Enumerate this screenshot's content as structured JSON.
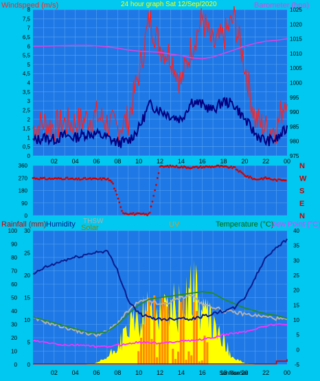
{
  "colors": {
    "background": "#00c8f0",
    "plot_bg": "#1e78e6",
    "grid": "#5aa6f0",
    "wind_gust": "#ff2020",
    "wind_avg": "#000080",
    "barometer": "#e040e0",
    "wind_dir": "#d00000",
    "humidity": "#0a1a8c",
    "temperature": "#228b22",
    "dew_point": "#ff30ff",
    "thsw": "#b0b0b0",
    "solar": "#ffff00",
    "uv": "#ff8c00",
    "rainfall": "#cc0000",
    "title_text": "#ffff00",
    "axis_text": "#000000"
  },
  "panel1": {
    "title": "24 hour graph Sat 12/Sep/2020",
    "left_label": "Windspeed (m/s)",
    "right_label": "Barometer (hpa)",
    "left_ticks": [
      "0",
      "0,5",
      "1",
      "1,5",
      "2",
      "2,5",
      "3",
      "3,5",
      "4",
      "4,5",
      "5",
      "5,5",
      "6",
      "6,5",
      "7",
      "7,5",
      "8"
    ],
    "right_ticks": [
      "975",
      "980",
      "985",
      "990",
      "995",
      "1000",
      "1005",
      "1010",
      "1015",
      "1020",
      "1025"
    ],
    "x_ticks": [
      "02",
      "04",
      "06",
      "08",
      "10",
      "12",
      "14",
      "16",
      "18",
      "20",
      "22",
      "00"
    ]
  },
  "panel2": {
    "left_ticks": [
      "0",
      "90",
      "180",
      "270",
      "360"
    ],
    "compass": [
      "N",
      "W",
      "S",
      "E",
      "N"
    ]
  },
  "panel3": {
    "labels": {
      "rainfall": "Rainfall (mm)",
      "humidity": "Humidity",
      "thsw": "THSW",
      "solar": "Solar",
      "uv": "UV",
      "temperature": "Temperature (°C)",
      "dew_point": "Dew Point (°C)"
    },
    "left_ticks": [
      "0",
      "10",
      "20",
      "30",
      "40",
      "50",
      "60",
      "70",
      "80",
      "90",
      "100"
    ],
    "inner_ticks": [
      "0",
      "5",
      "10",
      "15",
      "20",
      "25",
      "30"
    ],
    "right_ticks": [
      "-5",
      "0",
      "5",
      "10",
      "15",
      "20",
      "25",
      "30",
      "35",
      "40"
    ],
    "x_ticks": [
      "02",
      "04",
      "06",
      "08",
      "10",
      "12",
      "14",
      "16",
      "18",
      "20",
      "22",
      "00"
    ],
    "sun_labels": [
      "SunRise",
      "SunSet"
    ]
  },
  "chart_data": [
    {
      "type": "line",
      "title": "24 hour graph Sat 12/Sep/2020",
      "ylabel": "Windspeed (m/s)",
      "y2label": "Barometer (hpa)",
      "ylim": [
        0,
        8
      ],
      "y2lim": [
        975,
        1025
      ],
      "x_unit": "hour",
      "x": [
        0,
        1,
        2,
        3,
        4,
        5,
        6,
        7,
        8,
        9,
        10,
        11,
        12,
        13,
        14,
        15,
        16,
        17,
        18,
        19,
        20,
        21,
        22,
        23,
        24
      ],
      "series": [
        {
          "name": "Windspeed gust",
          "axis": "left",
          "values": [
            1.5,
            1.8,
            1.6,
            1.8,
            1.8,
            2.0,
            2.2,
            1.8,
            1.5,
            2.0,
            4.5,
            7.5,
            6.0,
            5.5,
            4.0,
            6.0,
            7.5,
            6.0,
            6.5,
            7.5,
            5.0,
            2.0,
            1.5,
            1.5,
            3.5
          ]
        },
        {
          "name": "Windspeed avg",
          "axis": "left",
          "values": [
            0.8,
            1.0,
            0.9,
            1.1,
            1.0,
            1.2,
            1.2,
            1.0,
            0.7,
            0.8,
            1.5,
            2.8,
            2.5,
            2.2,
            2.0,
            3.0,
            2.8,
            2.5,
            3.0,
            2.8,
            2.0,
            1.2,
            0.8,
            0.9,
            1.5
          ]
        },
        {
          "name": "Barometer",
          "axis": "right",
          "values": [
            1012.5,
            1012.5,
            1012.6,
            1012.7,
            1012.8,
            1012.8,
            1012.6,
            1012.3,
            1011.8,
            1011.2,
            1010.8,
            1010.6,
            1010.4,
            1009.8,
            1009.3,
            1008.5,
            1008.2,
            1008.8,
            1010.0,
            1011.2,
            1012.5,
            1013.5,
            1014.2,
            1014.5,
            1015.0
          ]
        }
      ]
    },
    {
      "type": "scatter",
      "ylabel": "Wind direction",
      "ylim": [
        0,
        360
      ],
      "x_unit": "hour",
      "x": [
        0,
        1,
        2,
        3,
        4,
        5,
        6,
        7,
        7.5,
        8.3,
        8.5,
        9,
        10,
        11,
        12,
        13,
        14,
        15,
        16,
        17,
        17.5,
        18,
        19,
        20,
        21,
        22,
        23,
        24
      ],
      "values": [
        270,
        265,
        265,
        268,
        260,
        265,
        262,
        265,
        240,
        60,
        20,
        15,
        10,
        8,
        350,
        355,
        350,
        345,
        350,
        352,
        355,
        350,
        345,
        290,
        260,
        270,
        255,
        260
      ]
    },
    {
      "type": "line",
      "ylabel": "Rainfall (mm)",
      "y2label": "Temperature (°C)",
      "ylim": [
        0,
        100
      ],
      "inner_ylim": [
        0,
        30
      ],
      "y2lim": [
        -5,
        40
      ],
      "x_unit": "hour",
      "x": [
        0,
        1,
        2,
        3,
        4,
        5,
        6,
        7,
        8,
        9,
        10,
        11,
        12,
        13,
        14,
        15,
        16,
        17,
        18,
        19,
        20,
        21,
        22,
        23,
        24
      ],
      "series": [
        {
          "name": "Humidity",
          "axis": "left",
          "values": [
            67,
            72,
            75,
            78,
            80,
            82,
            84,
            85,
            70,
            48,
            38,
            35,
            34,
            34,
            35,
            34,
            36,
            38,
            40,
            42,
            50,
            65,
            80,
            88,
            93
          ]
        },
        {
          "name": "Temperature",
          "axis": "right",
          "values": [
            11.0,
            10.0,
            9.0,
            8.0,
            7.0,
            6.0,
            5.5,
            6.0,
            8.5,
            12.0,
            15.0,
            17.0,
            17.5,
            18.0,
            18.5,
            19.0,
            19.5,
            19.0,
            17.0,
            15.5,
            14.0,
            13.0,
            12.0,
            11.5,
            10.5
          ]
        },
        {
          "name": "Dew Point",
          "axis": "right",
          "values": [
            3.0,
            2.5,
            2.0,
            1.5,
            1.5,
            1.5,
            1.0,
            1.0,
            1.5,
            2.0,
            2.5,
            2.5,
            2.0,
            2.5,
            3.0,
            3.0,
            3.5,
            4.0,
            5.0,
            5.5,
            6.0,
            7.0,
            8.0,
            8.5,
            8.5
          ]
        },
        {
          "name": "THSW",
          "axis": "right",
          "values": [
            10.5,
            9.5,
            8.5,
            7.5,
            6.5,
            5.5,
            5.0,
            6.0,
            9.0,
            13.0,
            16.0,
            16.5,
            15.0,
            16.0,
            17.5,
            18.5,
            15.0,
            14.5,
            13.0,
            12.5,
            12.0,
            11.5,
            11.0,
            10.5,
            10.0
          ]
        },
        {
          "name": "Solar",
          "axis": "inner",
          "values": [
            0,
            0,
            0,
            0,
            0,
            0,
            0.3,
            1.5,
            4.0,
            8.0,
            10.0,
            12.0,
            12.5,
            13.0,
            12.5,
            18.0,
            12.0,
            9.0,
            5.0,
            1.5,
            0.3,
            0,
            0,
            0,
            0
          ]
        },
        {
          "name": "UV",
          "axis": "inner",
          "values": [
            0,
            0,
            0,
            0,
            0,
            0,
            0,
            0,
            0,
            0,
            3.0,
            15.0,
            16.0,
            12.0,
            14.0,
            16.0,
            8.0,
            2.0,
            0,
            0,
            0,
            0,
            0,
            0,
            0
          ]
        },
        {
          "name": "Rainfall",
          "axis": "left",
          "values": [
            0.5,
            0.5,
            0.5,
            0.5,
            0.5,
            0.5,
            0.5,
            0.5,
            0.5,
            0.5,
            0.5,
            0.5,
            0.5,
            0.5,
            0.5,
            0.5,
            0.5,
            0.5,
            0.5,
            0.5,
            0.5,
            0.5,
            0.5,
            2.5,
            4.0
          ]
        }
      ]
    }
  ]
}
